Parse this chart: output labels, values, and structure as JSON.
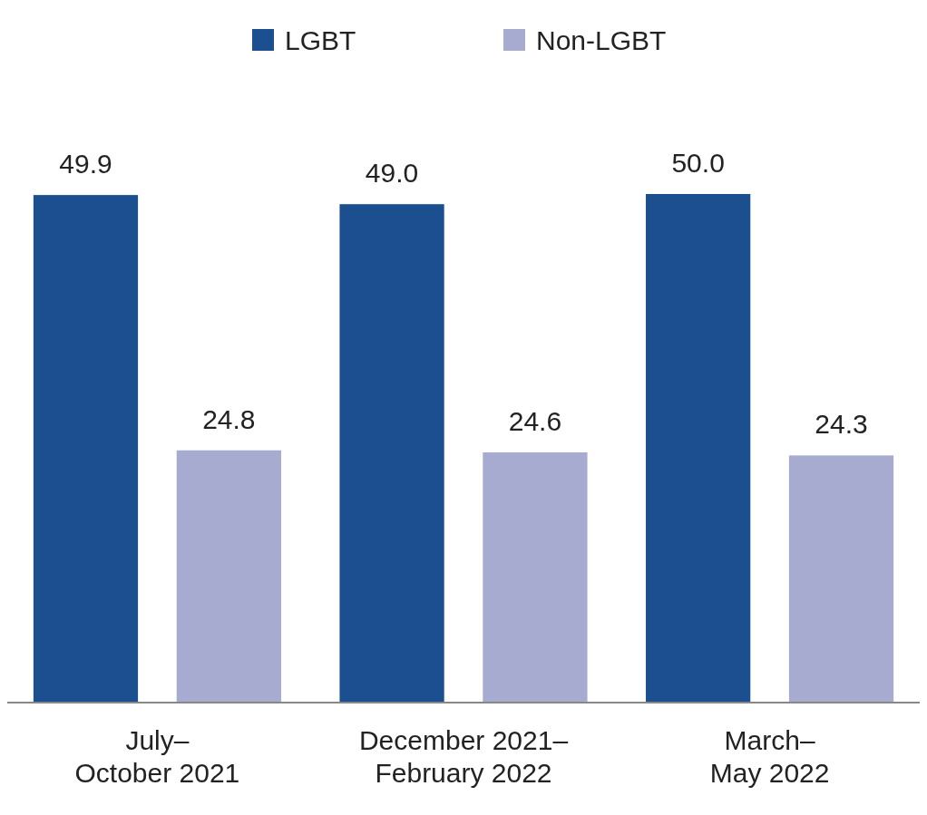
{
  "chart_data": {
    "type": "bar",
    "categories": [
      "July–October 2021",
      "December 2021–February 2022",
      "March–May 2022"
    ],
    "series": [
      {
        "name": "LGBT",
        "color": "#1c4f8f",
        "values": [
          49.9,
          49.0,
          50.0
        ],
        "value_labels": [
          "49.9",
          "49.0",
          "50.0"
        ]
      },
      {
        "name": "Non-LGBT",
        "color": "#a6abcf",
        "values": [
          24.8,
          24.6,
          24.3
        ],
        "value_labels": [
          "24.8",
          "24.6",
          "24.3"
        ]
      }
    ],
    "legend": "top"
  }
}
